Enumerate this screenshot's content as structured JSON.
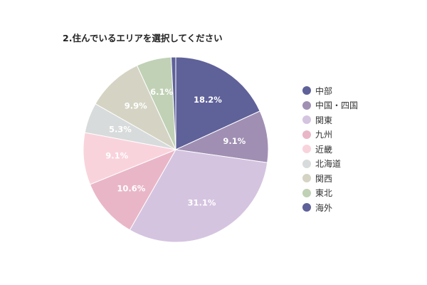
{
  "chart_data": {
    "type": "pie",
    "title": "2.住んでいるエリアを選択してください",
    "legend_position": "right",
    "start_angle_deg": 0,
    "direction": "clockwise",
    "slices": [
      {
        "label": "中部",
        "value": 18.2,
        "value_label": "18.2%",
        "color": "#5f6199"
      },
      {
        "label": "中国・四国",
        "value": 9.1,
        "value_label": "9.1%",
        "color": "#a08fb3"
      },
      {
        "label": "関東",
        "value": 31.1,
        "value_label": "31.1%",
        "color": "#d5c4e0"
      },
      {
        "label": "九州",
        "value": 10.6,
        "value_label": "10.6%",
        "color": "#e9b6c8"
      },
      {
        "label": "近畿",
        "value": 9.1,
        "value_label": "9.1%",
        "color": "#f9d3dc"
      },
      {
        "label": "北海道",
        "value": 5.3,
        "value_label": "5.3%",
        "color": "#d8dbdb"
      },
      {
        "label": "関西",
        "value": 9.9,
        "value_label": "9.9%",
        "color": "#d5d4c4"
      },
      {
        "label": "東北",
        "value": 6.1,
        "value_label": "6.1%",
        "color": "#c0d1b5"
      },
      {
        "label": "海外",
        "value": 0.8,
        "value_label": "",
        "color": "#5f6199"
      }
    ]
  }
}
